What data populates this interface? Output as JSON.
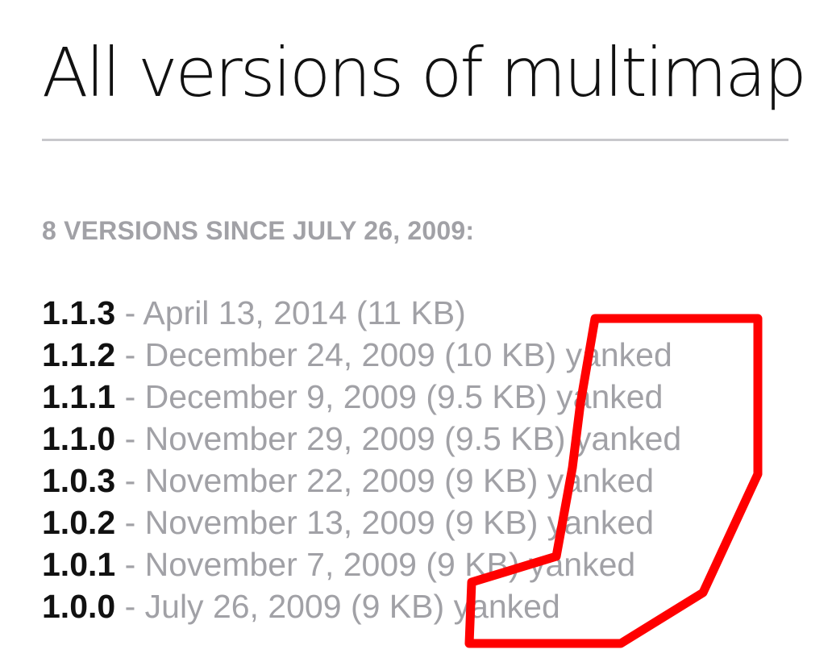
{
  "title": "All versions of multimap",
  "subheading": "8 VERSIONS SINCE JULY 26, 2009:",
  "separator": " - ",
  "versions": [
    {
      "number": "1.1.3",
      "date": "April 13, 2014",
      "size": "(11 KB)",
      "yanked": ""
    },
    {
      "number": "1.1.2",
      "date": "December 24, 2009",
      "size": "(10 KB)",
      "yanked": "yanked"
    },
    {
      "number": "1.1.1",
      "date": "December 9, 2009",
      "size": "(9.5 KB)",
      "yanked": "yanked"
    },
    {
      "number": "1.1.0",
      "date": "November 29, 2009",
      "size": "(9.5 KB)",
      "yanked": "yanked"
    },
    {
      "number": "1.0.3",
      "date": "November 22, 2009",
      "size": "(9 KB)",
      "yanked": "yanked"
    },
    {
      "number": "1.0.2",
      "date": "November 13, 2009",
      "size": "(9 KB)",
      "yanked": "yanked"
    },
    {
      "number": "1.0.1",
      "date": "November 7, 2009",
      "size": "(9 KB)",
      "yanked": "yanked"
    },
    {
      "number": "1.0.0",
      "date": "July 26, 2009",
      "size": "(9 KB)",
      "yanked": "yanked"
    }
  ],
  "colors": {
    "title": "#111111",
    "muted": "#a1a1a6",
    "rule": "#c8c8cc",
    "annotation": "#ff0000"
  }
}
